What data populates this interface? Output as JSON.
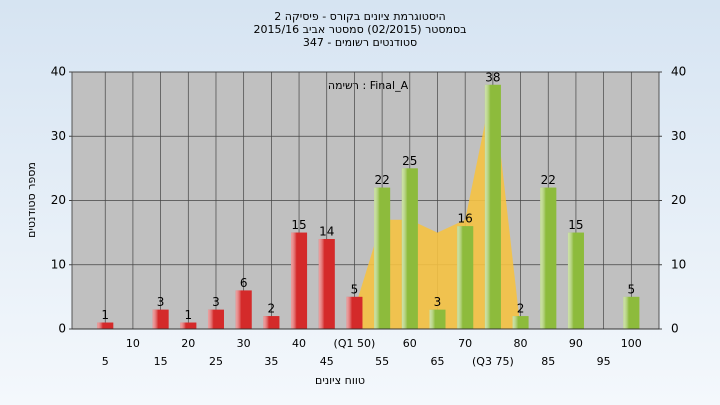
{
  "chart_data": {
    "type": "bar",
    "title": "היסטוגרמת ציונים בקורס - פיסיקה 2",
    "subtitle": "בסמסטר  (02/2015)  סמסטר אביב 2015/16",
    "subtitle2": "סטודנטים רשומים - 347",
    "annotation": "רשימה : Final_A",
    "ylabel": "מספר סטודנטים",
    "xlabel": "טווח ציונים",
    "categories": [
      "5",
      "10",
      "15",
      "20",
      "25",
      "30",
      "35",
      "40",
      "45",
      "(Q1 50)",
      "55",
      "60",
      "65",
      "70",
      "(Q3 75)",
      "80",
      "85",
      "90",
      "95",
      "100"
    ],
    "values": [
      1,
      0,
      3,
      1,
      3,
      6,
      2,
      15,
      14,
      5,
      22,
      25,
      3,
      16,
      38,
      2,
      22,
      15,
      0,
      5
    ],
    "bar_colors": [
      "#d42a2a",
      "#d42a2a",
      "#d42a2a",
      "#d42a2a",
      "#d42a2a",
      "#d42a2a",
      "#d42a2a",
      "#d42a2a",
      "#d42a2a",
      "#d42a2a",
      "#8dbb3c",
      "#8dbb3c",
      "#8dbb3c",
      "#8dbb3c",
      "#8dbb3c",
      "#8dbb3c",
      "#8dbb3c",
      "#8dbb3c",
      "#8dbb3c",
      "#8dbb3c"
    ],
    "overlay_values": [
      null,
      null,
      null,
      null,
      null,
      null,
      null,
      null,
      null,
      3,
      17,
      17,
      15,
      17,
      38,
      0,
      null,
      null,
      null,
      null
    ],
    "overlay_color": "#f5c242",
    "ylim": [
      0,
      40
    ],
    "yticks": [
      0,
      10,
      20,
      30,
      40
    ],
    "grid": true
  }
}
